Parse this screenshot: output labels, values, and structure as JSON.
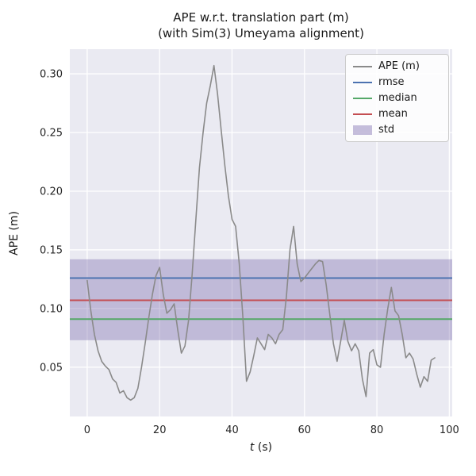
{
  "figure": {
    "title_line1": "APE w.r.t. translation part (m)",
    "title_line2": "(with Sim(3) Umeyama alignment)",
    "xlabel_var": "t",
    "xlabel_unit": " (s)",
    "ylabel": "APE (m)"
  },
  "chart_data": {
    "type": "line",
    "title": "APE w.r.t. translation part (m) (with Sim(3) Umeyama alignment)",
    "xlabel": "t (s)",
    "ylabel": "APE (m)",
    "xlim": [
      -4.8,
      100.8
    ],
    "ylim": [
      0.008,
      0.321
    ],
    "x_ticks": [
      0,
      20,
      40,
      60,
      80,
      100
    ],
    "y_ticks": [
      0.05,
      0.1,
      0.15,
      0.2,
      0.25,
      0.3
    ],
    "grid": true,
    "legend_position": "upper right",
    "colors": {
      "plot_bg": "#eaeaf2",
      "grid": "#ffffff",
      "text": "#262626"
    },
    "series": [
      {
        "name": "APE (m)",
        "color": "#8a8a8a",
        "x": [
          0,
          1,
          2,
          3,
          4,
          5,
          6,
          7,
          8,
          9,
          10,
          11,
          12,
          13,
          14,
          15,
          16,
          17,
          18,
          19,
          20,
          21,
          22,
          23,
          24,
          25,
          26,
          27,
          28,
          29,
          30,
          31,
          32,
          33,
          34,
          35,
          36,
          37,
          38,
          39,
          40,
          41,
          42,
          43,
          44,
          45,
          46,
          47,
          48,
          49,
          50,
          51,
          52,
          53,
          54,
          55,
          56,
          57,
          58,
          59,
          60,
          61,
          62,
          63,
          64,
          65,
          66,
          67,
          68,
          69,
          70,
          71,
          72,
          73,
          74,
          75,
          76,
          77,
          78,
          79,
          80,
          81,
          82,
          83,
          84,
          85,
          86,
          87,
          88,
          89,
          90,
          91,
          92,
          93,
          94,
          95,
          96
        ],
        "values": [
          0.124,
          0.098,
          0.078,
          0.064,
          0.055,
          0.051,
          0.048,
          0.04,
          0.037,
          0.028,
          0.03,
          0.024,
          0.022,
          0.024,
          0.032,
          0.05,
          0.07,
          0.092,
          0.112,
          0.128,
          0.135,
          0.112,
          0.096,
          0.099,
          0.104,
          0.082,
          0.062,
          0.068,
          0.09,
          0.13,
          0.175,
          0.22,
          0.25,
          0.275,
          0.29,
          0.307,
          0.283,
          0.252,
          0.222,
          0.196,
          0.176,
          0.17,
          0.138,
          0.092,
          0.038,
          0.046,
          0.06,
          0.075,
          0.07,
          0.065,
          0.078,
          0.075,
          0.07,
          0.078,
          0.082,
          0.11,
          0.15,
          0.17,
          0.138,
          0.123,
          0.126,
          0.13,
          0.134,
          0.138,
          0.141,
          0.14,
          0.12,
          0.095,
          0.07,
          0.055,
          0.072,
          0.09,
          0.072,
          0.064,
          0.07,
          0.064,
          0.04,
          0.025,
          0.062,
          0.065,
          0.052,
          0.05,
          0.078,
          0.1,
          0.118,
          0.098,
          0.094,
          0.078,
          0.058,
          0.062,
          0.057,
          0.044,
          0.033,
          0.042,
          0.038,
          0.056,
          0.058
        ]
      }
    ],
    "stat_lines": [
      {
        "name": "rmse",
        "value": 0.126,
        "color": "#4c72b0"
      },
      {
        "name": "median",
        "value": 0.091,
        "color": "#55a868"
      },
      {
        "name": "mean",
        "value": 0.107,
        "color": "#c44e52"
      }
    ],
    "std_band": {
      "name": "std",
      "low": 0.073,
      "high": 0.142,
      "color": "#8172b2",
      "opacity": 0.4
    }
  },
  "legend": {
    "entries": [
      {
        "key": "ape",
        "label": "APE (m)",
        "type": "line",
        "color": "#8a8a8a"
      },
      {
        "key": "rmse",
        "label": "rmse",
        "type": "line",
        "color": "#4c72b0"
      },
      {
        "key": "median",
        "label": "median",
        "type": "line",
        "color": "#55a868"
      },
      {
        "key": "mean",
        "label": "mean",
        "type": "line",
        "color": "#c44e52"
      },
      {
        "key": "std",
        "label": "std",
        "type": "patch",
        "color": "#8172b2",
        "opacity": 0.45
      }
    ]
  }
}
